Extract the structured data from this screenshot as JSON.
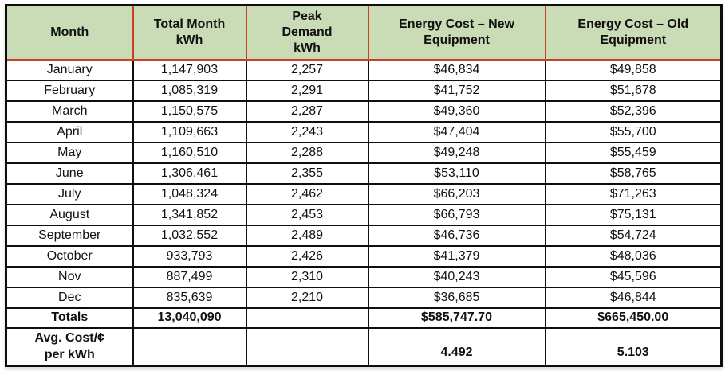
{
  "colors": {
    "header_bg": "#c9dcb6",
    "header_divider": "#cc4125",
    "grid": "#0e0e0e"
  },
  "chart_data": {
    "type": "table",
    "columns": [
      "Month",
      "Total Month\nkWh",
      "Peak\nDemand\nkWh",
      "Energy Cost – New\nEquipment",
      "Energy Cost – Old\nEquipment"
    ],
    "rows": [
      [
        "January",
        "1,147,903",
        "2,257",
        "$46,834",
        "$49,858"
      ],
      [
        "February",
        "1,085,319",
        "2,291",
        "$41,752",
        "$51,678"
      ],
      [
        "March",
        "1,150,575",
        "2,287",
        "$49,360",
        "$52,396"
      ],
      [
        "April",
        "1,109,663",
        "2,243",
        "$47,404",
        "$55,700"
      ],
      [
        "May",
        "1,160,510",
        "2,288",
        "$49,248",
        "$55,459"
      ],
      [
        "June",
        "1,306,461",
        "2,355",
        "$53,110",
        "$58,765"
      ],
      [
        "July",
        "1,048,324",
        "2,462",
        "$66,203",
        "$71,263"
      ],
      [
        "August",
        "1,341,852",
        "2,453",
        "$66,793",
        "$75,131"
      ],
      [
        "September",
        "1,032,552",
        "2,489",
        "$46,736",
        "$54,724"
      ],
      [
        "October",
        "933,793",
        "2,426",
        "$41,379",
        "$48,036"
      ],
      [
        "Nov",
        "887,499",
        "2,310",
        "$40,243",
        "$45,596"
      ],
      [
        "Dec",
        "835,639",
        "2,210",
        "$36,685",
        "$46,844"
      ]
    ],
    "totals_row": [
      "Totals",
      "13,040,090",
      "",
      "$585,747.70",
      "$665,450.00"
    ],
    "avg_row": [
      "Avg. Cost/¢\nper kWh",
      "",
      "",
      "4.492",
      "5.103"
    ]
  }
}
